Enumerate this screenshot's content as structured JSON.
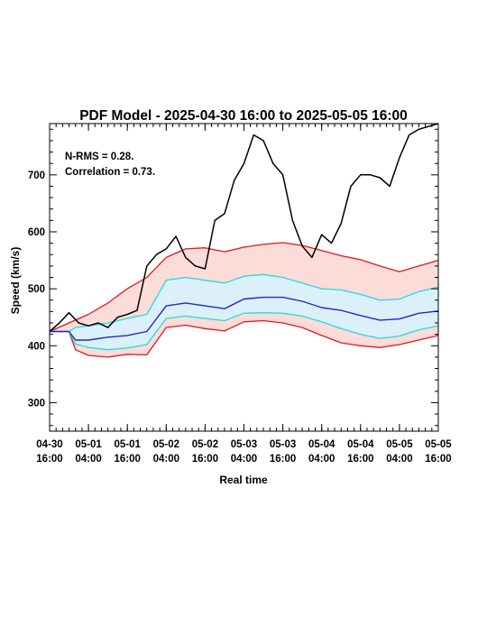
{
  "chart_data": {
    "type": "line",
    "title": "PDF Model - 2025-04-30 16:00 to 2025-05-05 16:00",
    "xlabel": "Real time",
    "ylabel": "Speed (km/s)",
    "xlim": [
      "2025-04-30 16:00",
      "2025-05-05 16:00"
    ],
    "ylim": [
      250,
      790
    ],
    "x_ticks": [
      {
        "at": "2025-04-30 16:00",
        "line1": "04-30",
        "line2": "16:00"
      },
      {
        "at": "2025-05-01 04:00",
        "line1": "05-01",
        "line2": "04:00"
      },
      {
        "at": "2025-05-01 16:00",
        "line1": "05-01",
        "line2": "16:00"
      },
      {
        "at": "2025-05-02 04:00",
        "line1": "05-02",
        "line2": "04:00"
      },
      {
        "at": "2025-05-02 16:00",
        "line1": "05-02",
        "line2": "16:00"
      },
      {
        "at": "2025-05-03 04:00",
        "line1": "05-03",
        "line2": "04:00"
      },
      {
        "at": "2025-05-03 16:00",
        "line1": "05-03",
        "line2": "16:00"
      },
      {
        "at": "2025-05-04 04:00",
        "line1": "05-04",
        "line2": "04:00"
      },
      {
        "at": "2025-05-04 16:00",
        "line1": "05-04",
        "line2": "16:00"
      },
      {
        "at": "2025-05-05 04:00",
        "line1": "05-05",
        "line2": "04:00"
      },
      {
        "at": "2025-05-05 16:00",
        "line1": "05-05",
        "line2": "16:00"
      }
    ],
    "y_ticks": [
      300,
      400,
      500,
      600,
      700
    ],
    "annotations": [
      "N-RMS = 0.28.",
      "Correlation = 0.73."
    ],
    "grid": false,
    "legend": "none",
    "colors": {
      "observed": "#000000",
      "outer_band": "#e8161b",
      "outer_fill": "#fbdcd8",
      "inner_band": "#28d8e0",
      "inner_fill": "#dcf0fa",
      "median": "#1a2ad0"
    },
    "series": [
      {
        "key": "outer_upper",
        "x": [
          "2025-04-30 16:00",
          "2025-04-30 22:00",
          "2025-05-01 04:00",
          "2025-05-01 10:00",
          "2025-05-01 16:00",
          "2025-05-01 22:00",
          "2025-05-02 04:00",
          "2025-05-02 10:00",
          "2025-05-02 16:00",
          "2025-05-02 22:00",
          "2025-05-03 04:00",
          "2025-05-03 10:00",
          "2025-05-03 16:00",
          "2025-05-03 22:00",
          "2025-05-04 04:00",
          "2025-05-04 10:00",
          "2025-05-04 16:00",
          "2025-05-04 22:00",
          "2025-05-05 04:00",
          "2025-05-05 10:00",
          "2025-05-05 16:00"
        ],
        "y": [
          425,
          440,
          455,
          475,
          500,
          520,
          555,
          570,
          572,
          565,
          573,
          578,
          581,
          576,
          567,
          558,
          551,
          540,
          530,
          540,
          550
        ]
      },
      {
        "key": "inner_upper",
        "x": [
          "2025-04-30 16:00",
          "2025-04-30 22:00",
          "2025-05-01 00:00",
          "2025-05-01 04:00",
          "2025-05-01 10:00",
          "2025-05-01 16:00",
          "2025-05-01 22:00",
          "2025-05-02 04:00",
          "2025-05-02 10:00",
          "2025-05-02 16:00",
          "2025-05-02 22:00",
          "2025-05-03 04:00",
          "2025-05-03 10:00",
          "2025-05-03 16:00",
          "2025-05-03 22:00",
          "2025-05-04 04:00",
          "2025-05-04 10:00",
          "2025-05-04 16:00",
          "2025-05-04 22:00",
          "2025-05-05 04:00",
          "2025-05-05 10:00",
          "2025-05-05 16:00"
        ],
        "y": [
          425,
          425,
          432,
          435,
          440,
          448,
          455,
          515,
          520,
          515,
          510,
          522,
          525,
          520,
          510,
          500,
          498,
          490,
          480,
          482,
          495,
          503
        ]
      },
      {
        "key": "median",
        "x": [
          "2025-04-30 16:00",
          "2025-04-30 22:00",
          "2025-05-01 00:00",
          "2025-05-01 04:00",
          "2025-05-01 10:00",
          "2025-05-01 16:00",
          "2025-05-01 22:00",
          "2025-05-02 04:00",
          "2025-05-02 10:00",
          "2025-05-02 16:00",
          "2025-05-02 22:00",
          "2025-05-03 04:00",
          "2025-05-03 10:00",
          "2025-05-03 16:00",
          "2025-05-03 22:00",
          "2025-05-04 04:00",
          "2025-05-04 10:00",
          "2025-05-04 16:00",
          "2025-05-04 22:00",
          "2025-05-05 04:00",
          "2025-05-05 10:00",
          "2025-05-05 16:00"
        ],
        "y": [
          425,
          425,
          410,
          410,
          415,
          418,
          425,
          470,
          475,
          470,
          465,
          482,
          485,
          485,
          478,
          467,
          462,
          453,
          445,
          447,
          457,
          461
        ]
      },
      {
        "key": "inner_lower",
        "x": [
          "2025-04-30 16:00",
          "2025-04-30 22:00",
          "2025-05-01 00:00",
          "2025-05-01 04:00",
          "2025-05-01 10:00",
          "2025-05-01 16:00",
          "2025-05-01 22:00",
          "2025-05-02 04:00",
          "2025-05-02 10:00",
          "2025-05-02 16:00",
          "2025-05-02 22:00",
          "2025-05-03 04:00",
          "2025-05-03 10:00",
          "2025-05-03 16:00",
          "2025-05-03 22:00",
          "2025-05-04 04:00",
          "2025-05-04 10:00",
          "2025-05-04 16:00",
          "2025-05-04 22:00",
          "2025-05-05 04:00",
          "2025-05-05 10:00",
          "2025-05-05 16:00"
        ],
        "y": [
          425,
          425,
          403,
          397,
          393,
          396,
          402,
          448,
          452,
          448,
          444,
          457,
          458,
          457,
          452,
          442,
          430,
          420,
          413,
          417,
          428,
          435
        ]
      },
      {
        "key": "outer_lower",
        "x": [
          "2025-04-30 16:00",
          "2025-04-30 22:00",
          "2025-05-01 00:00",
          "2025-05-01 04:00",
          "2025-05-01 10:00",
          "2025-05-01 16:00",
          "2025-05-01 22:00",
          "2025-05-02 04:00",
          "2025-05-02 10:00",
          "2025-05-02 16:00",
          "2025-05-02 22:00",
          "2025-05-03 04:00",
          "2025-05-03 10:00",
          "2025-05-03 16:00",
          "2025-05-03 22:00",
          "2025-05-04 04:00",
          "2025-05-04 10:00",
          "2025-05-04 16:00",
          "2025-05-04 22:00",
          "2025-05-05 04:00",
          "2025-05-05 10:00",
          "2025-05-05 16:00"
        ],
        "y": [
          425,
          425,
          393,
          383,
          380,
          385,
          384,
          432,
          436,
          430,
          426,
          442,
          444,
          440,
          432,
          418,
          405,
          400,
          397,
          402,
          410,
          418
        ]
      },
      {
        "key": "observed",
        "x": [
          "2025-04-30 16:00",
          "2025-04-30 19:00",
          "2025-04-30 22:00",
          "2025-05-01 01:00",
          "2025-05-01 04:00",
          "2025-05-01 07:00",
          "2025-05-01 10:00",
          "2025-05-01 13:00",
          "2025-05-01 16:00",
          "2025-05-01 19:00",
          "2025-05-01 22:00",
          "2025-05-02 01:00",
          "2025-05-02 04:00",
          "2025-05-02 07:00",
          "2025-05-02 10:00",
          "2025-05-02 13:00",
          "2025-05-02 16:00",
          "2025-05-02 19:00",
          "2025-05-02 22:00",
          "2025-05-03 01:00",
          "2025-05-03 04:00",
          "2025-05-03 07:00",
          "2025-05-03 10:00",
          "2025-05-03 13:00",
          "2025-05-03 16:00",
          "2025-05-03 19:00",
          "2025-05-03 22:00",
          "2025-05-04 01:00",
          "2025-05-04 04:00",
          "2025-05-04 07:00",
          "2025-05-04 10:00",
          "2025-05-04 13:00",
          "2025-05-04 16:00",
          "2025-05-04 19:00",
          "2025-05-04 22:00",
          "2025-05-05 01:00",
          "2025-05-05 04:00",
          "2025-05-05 07:00",
          "2025-05-05 10:00",
          "2025-05-05 13:00",
          "2025-05-05 16:00"
        ],
        "y": [
          425,
          440,
          458,
          440,
          435,
          440,
          432,
          450,
          455,
          462,
          540,
          560,
          570,
          592,
          555,
          540,
          535,
          620,
          632,
          690,
          720,
          770,
          760,
          720,
          700,
          620,
          575,
          555,
          595,
          580,
          615,
          680,
          700,
          700,
          695,
          680,
          730,
          770,
          780,
          785,
          790
        ]
      }
    ]
  }
}
